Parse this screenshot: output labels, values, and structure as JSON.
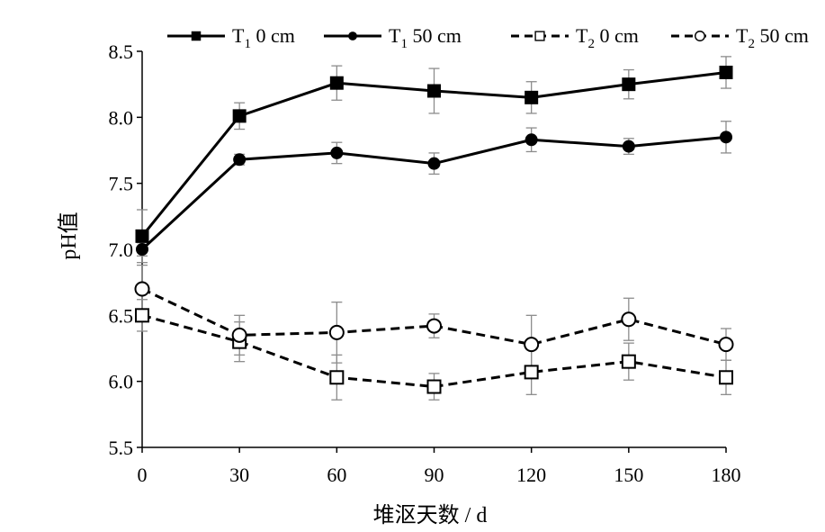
{
  "chart_data": {
    "type": "line",
    "title": "",
    "xlabel": "堆沤天数 / d",
    "ylabel": "pH值",
    "x": [
      0,
      30,
      60,
      90,
      120,
      150,
      180
    ],
    "xticks": [
      "0",
      "30",
      "60",
      "90",
      "120",
      "150",
      "180"
    ],
    "xlim": [
      0,
      180
    ],
    "ylim": [
      5.5,
      8.5
    ],
    "yticks": [
      "5.5",
      "6.0",
      "6.5",
      "7.0",
      "7.5",
      "8.0",
      "8.5"
    ],
    "grid": false,
    "legend_position": "top",
    "series": [
      {
        "name": "T1 0 cm",
        "label_main": "T",
        "label_sub": "1",
        "label_tail": "0 cm",
        "line_style": "solid",
        "marker": "square-filled",
        "values": [
          7.1,
          8.01,
          8.26,
          8.2,
          8.15,
          8.25,
          8.34
        ],
        "errors": [
          0.2,
          0.1,
          0.13,
          0.17,
          0.12,
          0.11,
          0.12
        ]
      },
      {
        "name": "T1 50 cm",
        "label_main": "T",
        "label_sub": "1",
        "label_tail": "50 cm",
        "line_style": "solid",
        "marker": "circle-filled",
        "values": [
          7.0,
          7.68,
          7.73,
          7.65,
          7.83,
          7.78,
          7.85
        ],
        "errors": [
          0.05,
          0.04,
          0.08,
          0.08,
          0.09,
          0.06,
          0.12
        ]
      },
      {
        "name": "T2 0 cm",
        "label_main": "T",
        "label_sub": "2",
        "label_tail": "0 cm",
        "line_style": "dashed",
        "marker": "square-open",
        "values": [
          6.5,
          6.3,
          6.03,
          5.96,
          6.07,
          6.15,
          6.03
        ],
        "errors": [
          0.12,
          0.15,
          0.17,
          0.1,
          0.17,
          0.14,
          0.13
        ]
      },
      {
        "name": "T2 50 cm",
        "label_main": "T",
        "label_sub": "2",
        "label_tail": "50 cm",
        "line_style": "dashed",
        "marker": "circle-open",
        "values": [
          6.7,
          6.35,
          6.37,
          6.42,
          6.28,
          6.47,
          6.28
        ],
        "errors": [
          0.18,
          0.15,
          0.23,
          0.09,
          0.22,
          0.16,
          0.12
        ]
      }
    ]
  }
}
